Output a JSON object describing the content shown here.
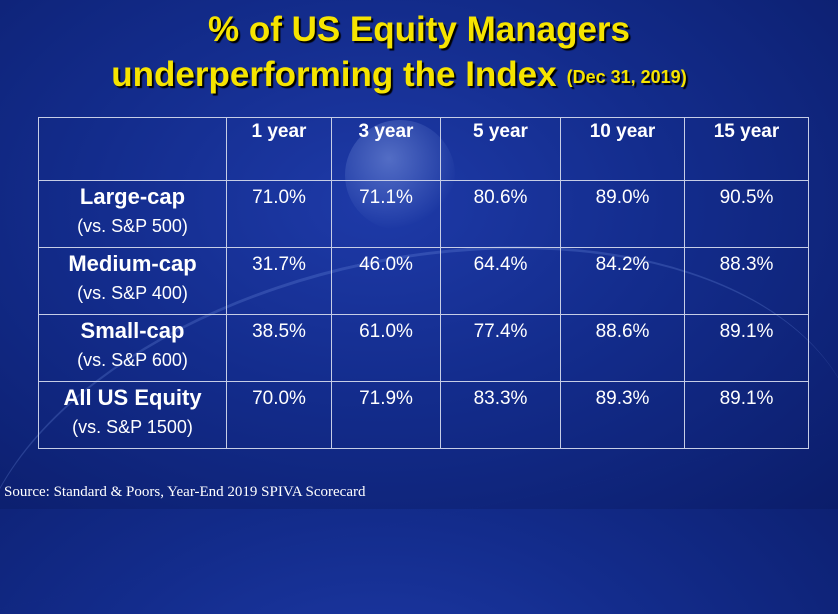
{
  "title_line1": "% of  US Equity Managers",
  "title_line2": "underperforming the Index",
  "title_date": "(Dec 31, 2019)",
  "source": "Source: Standard & Poors, Year-End 2019 SPIVA Scorecard",
  "colors": {
    "title": "#f6e400",
    "background": "#132c8c",
    "text": "#ffffff",
    "grid": "#c6cde6"
  },
  "chart_data": {
    "type": "table",
    "title": "% of  US Equity Managers underperforming the Index (Dec 31, 2019)",
    "columns": [
      "1 year",
      "3 year",
      "5 year",
      "10 year",
      "15 year"
    ],
    "rows": [
      {
        "name": "Large-cap",
        "benchmark": "(vs. S&P 500)",
        "values": [
          "71.0%",
          "71.1%",
          "80.6%",
          "89.0%",
          "90.5%"
        ]
      },
      {
        "name": "Medium-cap",
        "benchmark": "(vs. S&P 400)",
        "values": [
          "31.7%",
          "46.0%",
          "64.4%",
          "84.2%",
          "88.3%"
        ]
      },
      {
        "name": "Small-cap",
        "benchmark": "(vs. S&P 600)",
        "values": [
          "38.5%",
          "61.0%",
          "77.4%",
          "88.6%",
          "89.1%"
        ]
      },
      {
        "name": "All US Equity",
        "benchmark": "(vs. S&P 1500)",
        "values": [
          "70.0%",
          "71.9%",
          "83.3%",
          "89.3%",
          "89.1%"
        ]
      }
    ]
  }
}
